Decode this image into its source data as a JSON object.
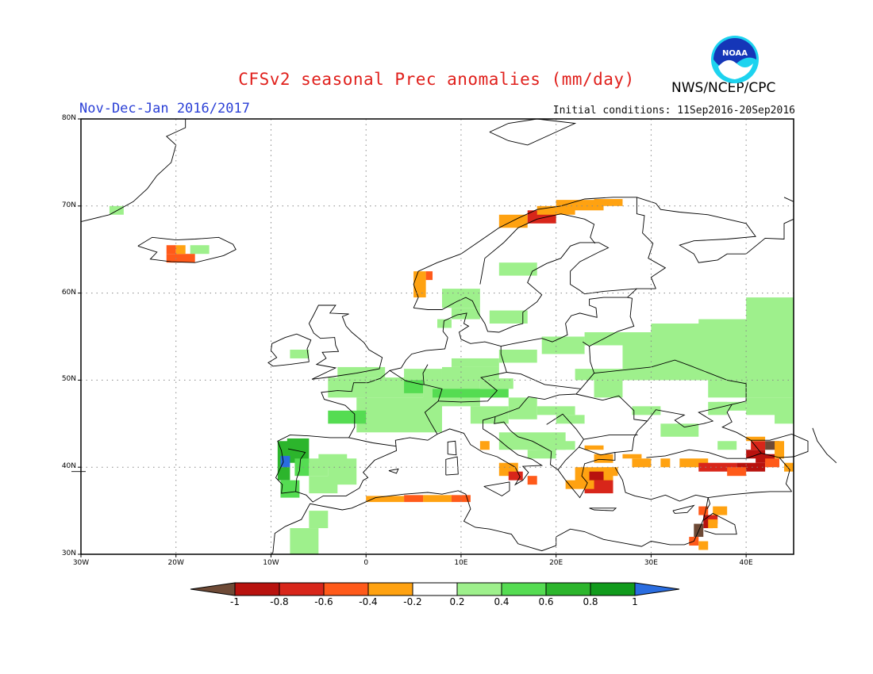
{
  "title": "CFSv2 seasonal Prec anomalies (mm/day)",
  "subtitle": "Nov-Dec-Jan 2016/2017",
  "initial_conditions": "Initial conditions: 11Sep2016-20Sep2016",
  "agency": "NWS/NCEP/CPC",
  "logo_text": "NOAA",
  "map": {
    "lat_labels": [
      "80N",
      "70N",
      "60N",
      "50N",
      "40N",
      "30N"
    ],
    "lon_labels": [
      "30W",
      "20W",
      "10W",
      "0",
      "10E",
      "20E",
      "30E",
      "40E"
    ],
    "lat_range": [
      30,
      80
    ],
    "lon_range": [
      -30,
      45
    ],
    "grid": "dotted"
  },
  "colorbar": {
    "labels": [
      "-1",
      "-0.8",
      "-0.6",
      "-0.4",
      "-0.2",
      "0.2",
      "0.4",
      "0.6",
      "0.8",
      "1"
    ],
    "colors": [
      "#6e4a36",
      "#b8120e",
      "#d8261a",
      "#ff5a1a",
      "#ffa211",
      "#ffffff",
      "#9ef08c",
      "#55dc52",
      "#2cb52c",
      "#119b1c",
      "#2a6de0"
    ]
  },
  "anomaly_regions": [
    {
      "name": "central-europe",
      "color": "#9ef08c"
    },
    {
      "name": "eastern-europe-russia",
      "color": "#9ef08c"
    },
    {
      "name": "iberia-northwest",
      "color": "#2cb52c"
    },
    {
      "name": "portugal-core",
      "color": "#2a6de0"
    },
    {
      "name": "norway-coast",
      "color": "#ffa211"
    },
    {
      "name": "iceland-south",
      "color": "#ff5a1a"
    },
    {
      "name": "north-africa-coast",
      "color": "#ffa211"
    },
    {
      "name": "greece",
      "color": "#d8261a"
    },
    {
      "name": "turkey-east",
      "color": "#b8120e"
    },
    {
      "name": "caucasus",
      "color": "#6e4a36"
    },
    {
      "name": "levant",
      "color": "#d8261a"
    }
  ]
}
